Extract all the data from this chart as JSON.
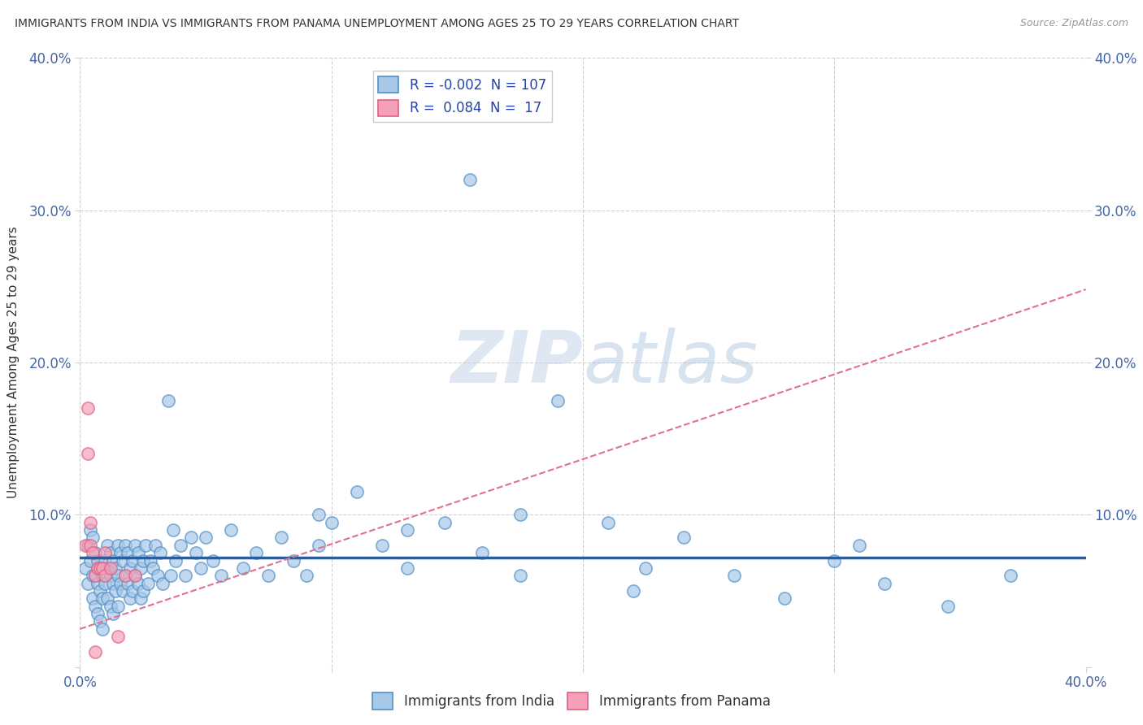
{
  "title": "IMMIGRANTS FROM INDIA VS IMMIGRANTS FROM PANAMA UNEMPLOYMENT AMONG AGES 25 TO 29 YEARS CORRELATION CHART",
  "source": "Source: ZipAtlas.com",
  "ylabel": "Unemployment Among Ages 25 to 29 years",
  "xlim": [
    0.0,
    0.4
  ],
  "ylim": [
    0.0,
    0.4
  ],
  "xticks": [
    0.0,
    0.1,
    0.2,
    0.3,
    0.4
  ],
  "yticks": [
    0.0,
    0.1,
    0.2,
    0.3,
    0.4
  ],
  "xticklabels": [
    "0.0%",
    "",
    "",
    "",
    "40.0%"
  ],
  "yticklabels": [
    "",
    "10.0%",
    "20.0%",
    "30.0%",
    "40.0%"
  ],
  "india_R": -0.002,
  "india_N": 107,
  "panama_R": 0.084,
  "panama_N": 17,
  "india_color": "#a8c8e8",
  "panama_color": "#f4a0b8",
  "india_edge_color": "#5090c8",
  "panama_edge_color": "#e06080",
  "india_line_color": "#2060a8",
  "panama_line_color": "#e07090",
  "background_color": "#ffffff",
  "grid_color": "#d0d0d0",
  "watermark_color": "#c8d8e8",
  "india_trend_y0": 0.072,
  "india_trend_y1": 0.072,
  "panama_trend_y0": 0.025,
  "panama_trend_y1": 0.248,
  "india_x": [
    0.002,
    0.003,
    0.003,
    0.004,
    0.004,
    0.005,
    0.005,
    0.005,
    0.006,
    0.006,
    0.006,
    0.007,
    0.007,
    0.007,
    0.008,
    0.008,
    0.008,
    0.009,
    0.009,
    0.009,
    0.01,
    0.01,
    0.011,
    0.011,
    0.011,
    0.012,
    0.012,
    0.012,
    0.013,
    0.013,
    0.013,
    0.014,
    0.014,
    0.015,
    0.015,
    0.015,
    0.016,
    0.016,
    0.017,
    0.017,
    0.018,
    0.018,
    0.019,
    0.019,
    0.02,
    0.02,
    0.021,
    0.021,
    0.022,
    0.022,
    0.023,
    0.023,
    0.024,
    0.024,
    0.025,
    0.025,
    0.026,
    0.027,
    0.028,
    0.029,
    0.03,
    0.031,
    0.032,
    0.033,
    0.035,
    0.036,
    0.037,
    0.038,
    0.04,
    0.042,
    0.044,
    0.046,
    0.048,
    0.05,
    0.053,
    0.056,
    0.06,
    0.065,
    0.07,
    0.075,
    0.08,
    0.085,
    0.09,
    0.095,
    0.1,
    0.11,
    0.12,
    0.13,
    0.145,
    0.16,
    0.175,
    0.19,
    0.21,
    0.225,
    0.24,
    0.26,
    0.28,
    0.3,
    0.32,
    0.345,
    0.37,
    0.22,
    0.31,
    0.155,
    0.095,
    0.175,
    0.13
  ],
  "india_y": [
    0.065,
    0.08,
    0.055,
    0.09,
    0.07,
    0.06,
    0.085,
    0.045,
    0.075,
    0.06,
    0.04,
    0.07,
    0.055,
    0.035,
    0.065,
    0.05,
    0.03,
    0.06,
    0.045,
    0.025,
    0.07,
    0.055,
    0.08,
    0.065,
    0.045,
    0.075,
    0.06,
    0.04,
    0.07,
    0.055,
    0.035,
    0.065,
    0.05,
    0.08,
    0.06,
    0.04,
    0.075,
    0.055,
    0.07,
    0.05,
    0.08,
    0.06,
    0.075,
    0.055,
    0.065,
    0.045,
    0.07,
    0.05,
    0.08,
    0.06,
    0.075,
    0.055,
    0.065,
    0.045,
    0.07,
    0.05,
    0.08,
    0.055,
    0.07,
    0.065,
    0.08,
    0.06,
    0.075,
    0.055,
    0.175,
    0.06,
    0.09,
    0.07,
    0.08,
    0.06,
    0.085,
    0.075,
    0.065,
    0.085,
    0.07,
    0.06,
    0.09,
    0.065,
    0.075,
    0.06,
    0.085,
    0.07,
    0.06,
    0.08,
    0.095,
    0.115,
    0.08,
    0.065,
    0.095,
    0.075,
    0.1,
    0.175,
    0.095,
    0.065,
    0.085,
    0.06,
    0.045,
    0.07,
    0.055,
    0.04,
    0.06,
    0.05,
    0.08,
    0.32,
    0.1,
    0.06,
    0.09
  ],
  "panama_x": [
    0.002,
    0.003,
    0.003,
    0.004,
    0.004,
    0.005,
    0.006,
    0.007,
    0.008,
    0.009,
    0.01,
    0.012,
    0.015,
    0.018,
    0.022,
    0.01,
    0.006
  ],
  "panama_y": [
    0.08,
    0.17,
    0.14,
    0.095,
    0.08,
    0.075,
    0.06,
    0.065,
    0.065,
    0.065,
    0.06,
    0.065,
    0.02,
    0.06,
    0.06,
    0.075,
    0.01
  ]
}
